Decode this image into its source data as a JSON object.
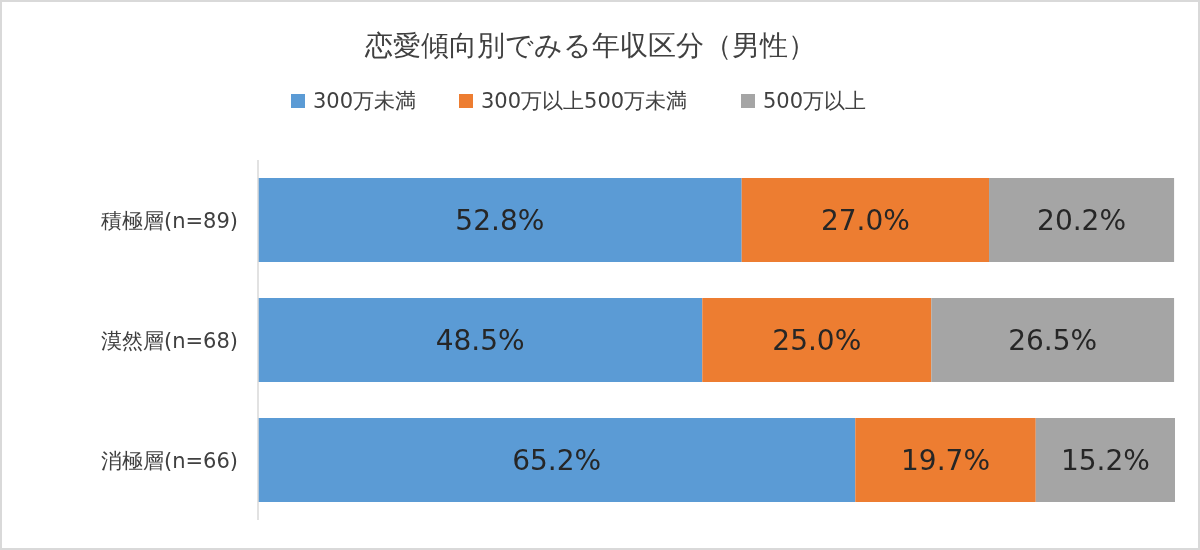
{
  "chart_data": {
    "type": "bar",
    "orientation": "horizontal",
    "stacked": true,
    "title": "恋愛傾向別でみる年収区分（男性）",
    "legend": "top",
    "categories": [
      "積極層(n=89)",
      "漠然層(n=68)",
      "消極層(n=66)"
    ],
    "series": [
      {
        "name": "300万未満",
        "color": "#5b9bd5",
        "values": [
          52.8,
          48.5,
          65.2
        ],
        "value_labels": [
          "52.8%",
          "48.5%",
          "65.2%"
        ]
      },
      {
        "name": "300万以上500万未満",
        "color": "#ed7d31",
        "values": [
          27.0,
          25.0,
          19.7
        ],
        "value_labels": [
          "27.0%",
          "25.0%",
          "19.7%"
        ]
      },
      {
        "name": "500万以上",
        "color": "#a5a5a5",
        "values": [
          20.2,
          26.5,
          15.2
        ],
        "value_labels": [
          "20.2%",
          "26.5%",
          "15.2%"
        ]
      }
    ]
  }
}
